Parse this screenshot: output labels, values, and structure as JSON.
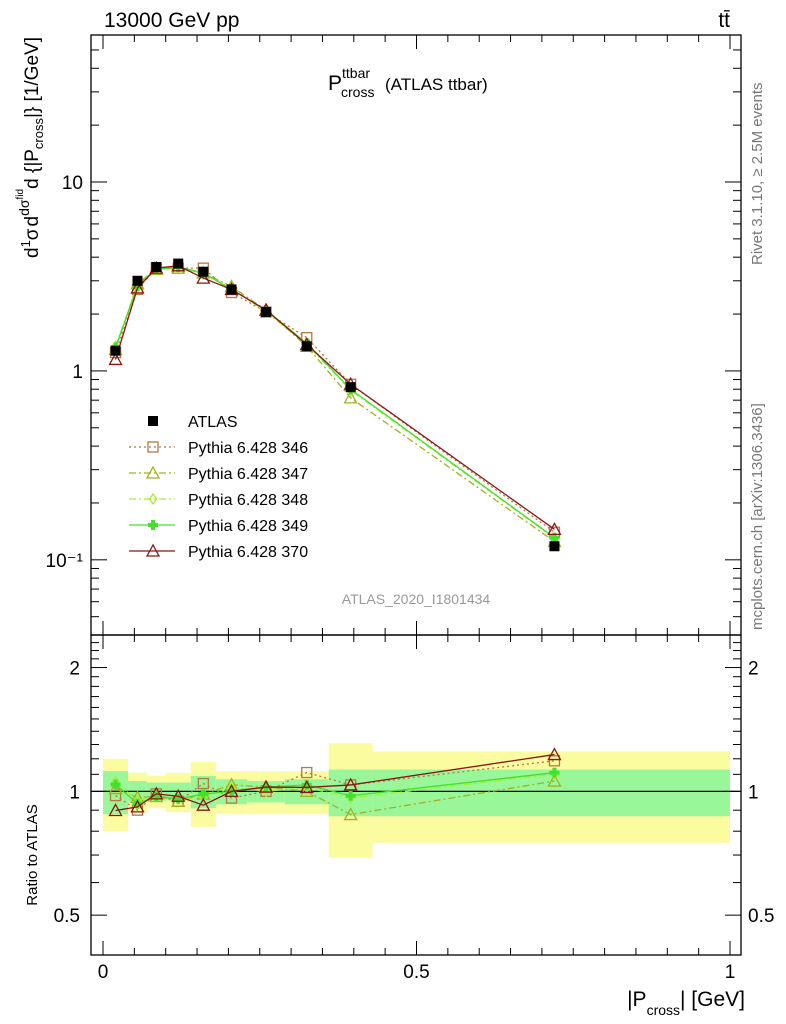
{
  "header": {
    "left": "13000 GeV pp",
    "right": "tt̄"
  },
  "side_labels": {
    "rivet": "Rivet 3.1.10, ≥ 2.5M events",
    "mcplots": "mcplots.cern.ch [arXiv:1306.3436]"
  },
  "watermark": "ATLAS_2020_I1801434",
  "title": {
    "main": "P",
    "sup": "ttbar",
    "sub": "cross",
    "suffix": " (ATLAS ttbar)"
  },
  "colors": {
    "data": "#000000",
    "346": "#b07a40",
    "347": "#a3b020",
    "348": "#a6ee33",
    "349": "#44e030",
    "370": "#8b1515",
    "band_inner": "#99f799",
    "band_outer": "#fbfba0"
  },
  "chart_data": {
    "type": "line",
    "title": "P_cross^ttbar (ATLAS ttbar)",
    "xlabel": "|P_cross| [GeV]",
    "ylabel": "1/σ dσ^fid/d{|P_cross|} [1/GeV]",
    "ratio_ylabel": "Ratio to ATLAS",
    "xlim": [
      0,
      1
    ],
    "ylim": [
      0.04,
      60
    ],
    "ylog": true,
    "ratio_ylim": [
      0.4,
      2.4
    ],
    "ratio_ylog": true,
    "x_ticks": [
      "0",
      "0.5",
      "1"
    ],
    "y_ticks": [
      "10⁻¹",
      "1",
      "10"
    ],
    "ratio_ticks": [
      "0.5",
      "1",
      "2"
    ],
    "bins": [
      0.0,
      0.04,
      0.07,
      0.1,
      0.14,
      0.18,
      0.23,
      0.29,
      0.36,
      0.43,
      1.0
    ],
    "x": [
      0.02,
      0.055,
      0.085,
      0.12,
      0.16,
      0.205,
      0.26,
      0.325,
      0.395,
      0.72
    ],
    "data": [
      1.28,
      3.0,
      3.55,
      3.7,
      3.35,
      2.7,
      2.05,
      1.35,
      0.82,
      0.118
    ],
    "data_band_inner": [
      0.12,
      0.06,
      0.05,
      0.05,
      0.09,
      0.07,
      0.06,
      0.07,
      0.13,
      0.13
    ],
    "data_band_outer": [
      0.2,
      0.11,
      0.09,
      0.11,
      0.18,
      0.12,
      0.12,
      0.12,
      0.31,
      0.25
    ],
    "legend_position": "center-left",
    "series": [
      {
        "name": "ATLAS",
        "key": "data",
        "marker": "square-filled",
        "line": "none",
        "values": [
          1.28,
          3.0,
          3.55,
          3.7,
          3.35,
          2.7,
          2.05,
          1.35,
          0.82,
          0.118
        ]
      },
      {
        "name": "Pythia 6.428 346",
        "key": "346",
        "marker": "square-open",
        "line": "dotted",
        "values": [
          1.25,
          2.7,
          3.5,
          3.5,
          3.5,
          2.6,
          2.05,
          1.5,
          0.85,
          0.14
        ]
      },
      {
        "name": "Pythia 6.428 347",
        "key": "347",
        "marker": "triangle-open",
        "line": "dashdot",
        "values": [
          1.3,
          2.9,
          3.45,
          3.5,
          3.3,
          2.8,
          2.1,
          1.35,
          0.72,
          0.125
        ]
      },
      {
        "name": "Pythia 6.428 348",
        "key": "348",
        "marker": "diamond-open",
        "line": "dashdot",
        "values": [
          1.35,
          2.85,
          3.45,
          3.55,
          3.25,
          2.75,
          2.05,
          1.38,
          0.79,
          0.13
        ]
      },
      {
        "name": "Pythia 6.428 349",
        "key": "349",
        "marker": "cross",
        "line": "solid",
        "values": [
          1.33,
          2.8,
          3.45,
          3.55,
          3.3,
          2.7,
          2.1,
          1.4,
          0.8,
          0.131
        ]
      },
      {
        "name": "Pythia 6.428 370",
        "key": "370",
        "marker": "triangle-open",
        "line": "solid",
        "values": [
          1.15,
          2.75,
          3.5,
          3.6,
          3.1,
          2.7,
          2.1,
          1.38,
          0.85,
          0.145
        ]
      }
    ]
  }
}
